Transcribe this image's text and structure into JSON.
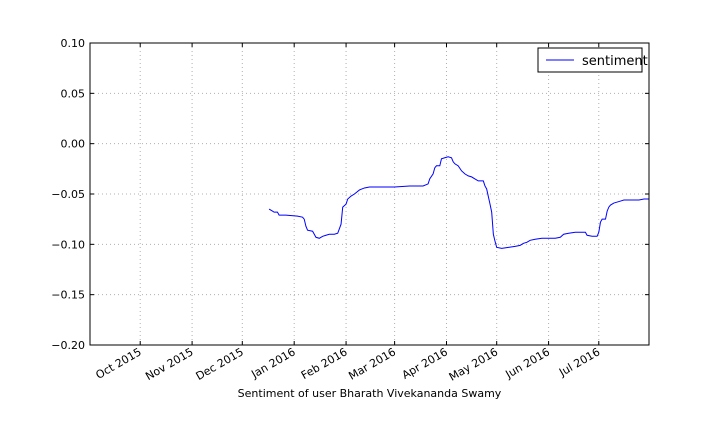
{
  "chart_data": {
    "type": "line",
    "title": "",
    "xlabel": "Sentiment of user Bharath Vivekananda Swamy",
    "ylabel": "",
    "x_range": [
      "2015-09-01",
      "2016-07-31"
    ],
    "ylim": [
      -0.2,
      0.1
    ],
    "grid": true,
    "legend": {
      "placement": "top-right",
      "entries": [
        "sentiment"
      ]
    },
    "x_ticks": [
      {
        "date": "2015-10-01",
        "label": "Oct 2015"
      },
      {
        "date": "2015-11-01",
        "label": "Nov 2015"
      },
      {
        "date": "2015-12-01",
        "label": "Dec 2015"
      },
      {
        "date": "2016-01-01",
        "label": "Jan 2016"
      },
      {
        "date": "2016-02-01",
        "label": "Feb 2016"
      },
      {
        "date": "2016-03-01",
        "label": "Mar 2016"
      },
      {
        "date": "2016-04-01",
        "label": "Apr 2016"
      },
      {
        "date": "2016-05-01",
        "label": "May 2016"
      },
      {
        "date": "2016-06-01",
        "label": "Jun 2016"
      },
      {
        "date": "2016-07-01",
        "label": "Jul 2016"
      }
    ],
    "y_ticks": [
      {
        "value": 0.1,
        "label": "0.10"
      },
      {
        "value": 0.05,
        "label": "0.05"
      },
      {
        "value": 0.0,
        "label": "0.00"
      },
      {
        "value": -0.05,
        "label": "−0.05"
      },
      {
        "value": -0.1,
        "label": "−0.10"
      },
      {
        "value": -0.15,
        "label": "−0.15"
      },
      {
        "value": -0.2,
        "label": "−0.20"
      }
    ],
    "series": [
      {
        "name": "sentiment",
        "color": "#0000ff",
        "points": [
          [
            "2015-12-17",
            -0.065
          ],
          [
            "2015-12-19",
            -0.067
          ],
          [
            "2015-12-20",
            -0.068
          ],
          [
            "2015-12-22",
            -0.068
          ],
          [
            "2015-12-23",
            -0.071
          ],
          [
            "2015-12-27",
            -0.071
          ],
          [
            "2016-01-03",
            -0.072
          ],
          [
            "2016-01-06",
            -0.073
          ],
          [
            "2016-01-07",
            -0.075
          ],
          [
            "2016-01-08",
            -0.082
          ],
          [
            "2016-01-09",
            -0.086
          ],
          [
            "2016-01-12",
            -0.087
          ],
          [
            "2016-01-13",
            -0.09
          ],
          [
            "2016-01-14",
            -0.093
          ],
          [
            "2016-01-16",
            -0.094
          ],
          [
            "2016-01-18",
            -0.092
          ],
          [
            "2016-01-20",
            -0.091
          ],
          [
            "2016-01-22",
            -0.09
          ],
          [
            "2016-01-25",
            -0.09
          ],
          [
            "2016-01-27",
            -0.089
          ],
          [
            "2016-01-29",
            -0.08
          ],
          [
            "2016-01-30",
            -0.063
          ],
          [
            "2016-02-01",
            -0.06
          ],
          [
            "2016-02-02",
            -0.055
          ],
          [
            "2016-02-04",
            -0.052
          ],
          [
            "2016-02-06",
            -0.05
          ],
          [
            "2016-02-09",
            -0.046
          ],
          [
            "2016-02-12",
            -0.044
          ],
          [
            "2016-02-15",
            -0.043
          ],
          [
            "2016-02-20",
            -0.043
          ],
          [
            "2016-03-01",
            -0.043
          ],
          [
            "2016-03-10",
            -0.042
          ],
          [
            "2016-03-18",
            -0.042
          ],
          [
            "2016-03-21",
            -0.04
          ],
          [
            "2016-03-22",
            -0.035
          ],
          [
            "2016-03-24",
            -0.03
          ],
          [
            "2016-03-25",
            -0.024
          ],
          [
            "2016-03-26",
            -0.022
          ],
          [
            "2016-03-28",
            -0.022
          ],
          [
            "2016-03-29",
            -0.015
          ],
          [
            "2016-03-31",
            -0.014
          ],
          [
            "2016-04-02",
            -0.013
          ],
          [
            "2016-04-04",
            -0.014
          ],
          [
            "2016-04-05",
            -0.018
          ],
          [
            "2016-04-06",
            -0.02
          ],
          [
            "2016-04-08",
            -0.022
          ],
          [
            "2016-04-10",
            -0.027
          ],
          [
            "2016-04-12",
            -0.03
          ],
          [
            "2016-04-14",
            -0.032
          ],
          [
            "2016-04-16",
            -0.033
          ],
          [
            "2016-04-18",
            -0.035
          ],
          [
            "2016-04-20",
            -0.037
          ],
          [
            "2016-04-23",
            -0.037
          ],
          [
            "2016-04-24",
            -0.042
          ],
          [
            "2016-04-25",
            -0.045
          ],
          [
            "2016-04-27",
            -0.06
          ],
          [
            "2016-04-28",
            -0.068
          ],
          [
            "2016-04-29",
            -0.09
          ],
          [
            "2016-04-30",
            -0.097
          ],
          [
            "2016-05-01",
            -0.103
          ],
          [
            "2016-05-04",
            -0.104
          ],
          [
            "2016-05-08",
            -0.103
          ],
          [
            "2016-05-12",
            -0.102
          ],
          [
            "2016-05-15",
            -0.101
          ],
          [
            "2016-05-17",
            -0.099
          ],
          [
            "2016-05-19",
            -0.098
          ],
          [
            "2016-05-21",
            -0.096
          ],
          [
            "2016-05-24",
            -0.095
          ],
          [
            "2016-05-28",
            -0.094
          ],
          [
            "2016-06-05",
            -0.094
          ],
          [
            "2016-06-08",
            -0.093
          ],
          [
            "2016-06-10",
            -0.09
          ],
          [
            "2016-06-13",
            -0.089
          ],
          [
            "2016-06-17",
            -0.088
          ],
          [
            "2016-06-23",
            -0.088
          ],
          [
            "2016-06-24",
            -0.091
          ],
          [
            "2016-06-27",
            -0.092
          ],
          [
            "2016-06-30",
            -0.092
          ],
          [
            "2016-07-01",
            -0.088
          ],
          [
            "2016-07-02",
            -0.078
          ],
          [
            "2016-07-03",
            -0.075
          ],
          [
            "2016-07-05",
            -0.075
          ],
          [
            "2016-07-06",
            -0.067
          ],
          [
            "2016-07-07",
            -0.063
          ],
          [
            "2016-07-08",
            -0.061
          ],
          [
            "2016-07-10",
            -0.059
          ],
          [
            "2016-07-12",
            -0.058
          ],
          [
            "2016-07-14",
            -0.057
          ],
          [
            "2016-07-16",
            -0.056
          ],
          [
            "2016-07-20",
            -0.056
          ],
          [
            "2016-07-25",
            -0.056
          ],
          [
            "2016-07-28",
            -0.055
          ],
          [
            "2016-07-31",
            -0.055
          ]
        ]
      }
    ]
  }
}
